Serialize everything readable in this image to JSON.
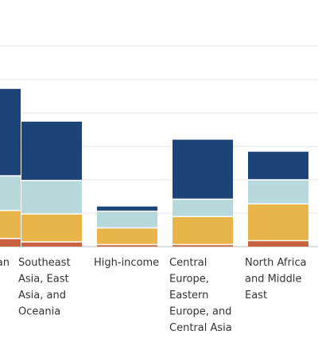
{
  "chart_data": {
    "type": "bar",
    "stacked": true,
    "categories": [
      "...an",
      "Southeast Asia, East Asia, and Oceania",
      "High-income",
      "Central Europe, Eastern Europe, and Central Asia",
      "North Africa and Middle East"
    ],
    "category_label_lines": [
      [
        "an"
      ],
      [
        "Southeast",
        "Asia, East",
        "Asia, and",
        "Oceania"
      ],
      [
        "High-income"
      ],
      [
        "Central",
        "Europe,",
        "Eastern",
        "Europe, and",
        "Central Asia"
      ],
      [
        "North Africa",
        "and Middle",
        "East"
      ]
    ],
    "series": [
      {
        "values": [
          1.2,
          0.7,
          0.3,
          0.3,
          0.9
        ],
        "color": "#c9623f"
      },
      {
        "values": [
          4.2,
          4.2,
          2.5,
          4.2,
          5.5
        ],
        "color": "#e9b54a"
      },
      {
        "values": [
          5.2,
          5.0,
          2.5,
          2.6,
          3.6
        ],
        "color": "#b8d9dc"
      },
      {
        "values": [
          13.0,
          8.8,
          0.7,
          8.9,
          4.2
        ],
        "color": "#1c4479"
      }
    ],
    "ylim": [
      0,
      33
    ],
    "grid": true,
    "yticks": [
      0,
      5,
      10,
      15,
      20,
      25,
      30
    ],
    "title": "",
    "xlabel": "",
    "ylabel": ""
  }
}
